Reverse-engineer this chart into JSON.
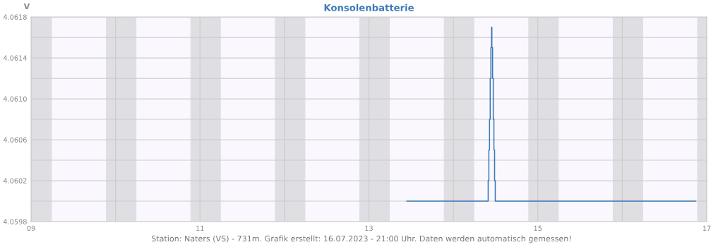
{
  "chart_data": {
    "type": "step",
    "title": "Konsolenbatterie",
    "ylabel": "V",
    "annotations": [
      "Station: Naters (VS) - 731m. Grafik erstellt: 16.07.2023 - 21:00 Uhr. Daten werden automatisch gemessen!"
    ],
    "x": [
      13.45,
      14.412,
      14.42,
      14.428,
      14.436,
      14.444,
      14.452,
      14.456,
      14.464,
      14.472,
      14.48,
      14.488,
      14.496,
      16.87
    ],
    "series": [
      {
        "color": "#3a78b5",
        "values": [
          4.06,
          4.0602,
          4.0605,
          4.0608,
          4.0612,
          4.0615,
          4.0617,
          4.0615,
          4.0612,
          4.0608,
          4.0605,
          4.0602,
          4.06,
          4.06
        ]
      }
    ],
    "xlim": [
      9,
      17
    ],
    "xticks": [
      {
        "value": 9,
        "label": "09"
      },
      {
        "value": 10,
        "label": null
      },
      {
        "value": 11,
        "label": "11"
      },
      {
        "value": 12,
        "label": null
      },
      {
        "value": 13,
        "label": "13"
      },
      {
        "value": 14,
        "label": null
      },
      {
        "value": 15,
        "label": "15"
      },
      {
        "value": 16,
        "label": null
      },
      {
        "value": 17,
        "label": "17"
      }
    ],
    "ylim": [
      4.0598,
      4.0618
    ],
    "yticks": [
      {
        "value": 4.0598,
        "label": "4.0598"
      },
      {
        "value": 4.06,
        "label": null
      },
      {
        "value": 4.0602,
        "label": "4.0602"
      },
      {
        "value": 4.0604,
        "label": null
      },
      {
        "value": 4.0606,
        "label": "4.0606"
      },
      {
        "value": 4.0608,
        "label": null
      },
      {
        "value": 4.061,
        "label": "4.0610"
      },
      {
        "value": 4.0612,
        "label": null
      },
      {
        "value": 4.0614,
        "label": "4.0614"
      },
      {
        "value": 4.0616,
        "label": null
      },
      {
        "value": 4.0618,
        "label": "4.0618"
      }
    ],
    "grid": true,
    "line_style": "solid",
    "marker": "none",
    "bands": [
      {
        "axis": "x",
        "from": 9,
        "to": 9.247,
        "color": "#dfdfe3"
      },
      {
        "axis": "x",
        "from": 9.887,
        "to": 10.247,
        "color": "#dfdfe3"
      },
      {
        "axis": "x",
        "from": 10.887,
        "to": 11.247,
        "color": "#dfdfe3"
      },
      {
        "axis": "x",
        "from": 11.887,
        "to": 12.247,
        "color": "#dfdfe3"
      },
      {
        "axis": "x",
        "from": 12.887,
        "to": 13.247,
        "color": "#dfdfe3"
      },
      {
        "axis": "x",
        "from": 13.887,
        "to": 14.247,
        "color": "#dfdfe3"
      },
      {
        "axis": "x",
        "from": 14.887,
        "to": 15.247,
        "color": "#dfdfe3"
      },
      {
        "axis": "x",
        "from": 15.887,
        "to": 16.247,
        "color": "#dfdfe3"
      },
      {
        "axis": "x",
        "from": 16.887,
        "to": 17,
        "color": "#dfdfe3"
      }
    ]
  }
}
